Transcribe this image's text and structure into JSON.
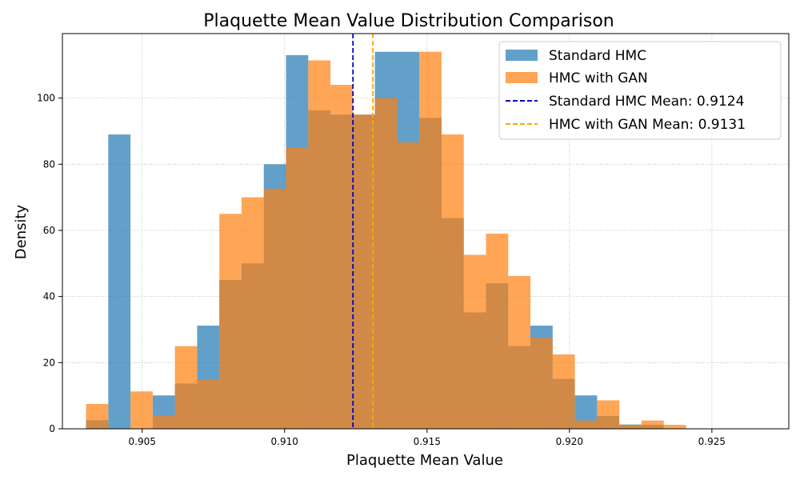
{
  "chart_data": {
    "type": "histogram",
    "title": "Plaquette Mean Value Distribution Comparison",
    "xlabel": "Plaquette Mean Value",
    "ylabel": "Density",
    "xlim": [
      0.9022,
      0.9277
    ],
    "ylim": [
      0,
      119.5
    ],
    "x_ticks": [
      0.905,
      0.91,
      0.915,
      0.92,
      0.925
    ],
    "x_tick_labels": [
      "0.905",
      "0.910",
      "0.915",
      "0.920",
      "0.925"
    ],
    "y_ticks": [
      0,
      20,
      40,
      60,
      80,
      100
    ],
    "y_tick_labels": [
      "0",
      "20",
      "40",
      "60",
      "80",
      "100"
    ],
    "grid": true,
    "legend_position": "top-right",
    "bin_edges": [
      0.90303,
      0.90381,
      0.90459,
      0.90537,
      0.90615,
      0.90693,
      0.90771,
      0.90849,
      0.90927,
      0.91005,
      0.91083,
      0.91161,
      0.91239,
      0.91317,
      0.91395,
      0.91473,
      0.91551,
      0.91629,
      0.91707,
      0.91785,
      0.91863,
      0.91941,
      0.92019,
      0.92097,
      0.92175,
      0.92253,
      0.92331,
      0.92409
    ],
    "series": [
      {
        "name": "Standard HMC",
        "color": "#1f77b4",
        "opacity": 0.7,
        "values": [
          2.6,
          89,
          0,
          10.1,
          13.7,
          31.2,
          45,
          50,
          80,
          113,
          96.3,
          95,
          95,
          114,
          114,
          94,
          63.7,
          35.2,
          44,
          25,
          31.2,
          15.1,
          10.1,
          3.9,
          1.3,
          1.2,
          0
        ]
      },
      {
        "name": "HMC with GAN",
        "color": "#ff7f0e",
        "opacity": 0.7,
        "values": [
          7.5,
          0,
          11.3,
          3.9,
          25,
          15,
          65,
          70,
          72.6,
          85,
          111.4,
          104,
          95,
          100,
          86.6,
          114,
          89,
          52.6,
          59,
          46.2,
          27.5,
          22.5,
          2.5,
          8.6,
          1.2,
          2.5,
          1.2
        ]
      }
    ],
    "reference_lines": [
      {
        "name": "Standard HMC Mean: 0.9124",
        "x": 0.9124,
        "color": "#0000cc",
        "style": "dashed"
      },
      {
        "name": "HMC with GAN Mean: 0.9131",
        "x": 0.9131,
        "color": "#ffa500",
        "style": "dashed"
      }
    ]
  }
}
